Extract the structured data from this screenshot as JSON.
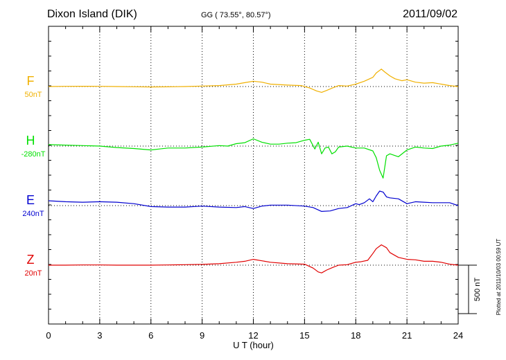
{
  "header": {
    "station": "Dixon Island (DIK)",
    "coords": "GG ( 73.55°,  80.57°)",
    "date": "2011/09/02"
  },
  "plotted_note": "Plotted at 2011/10/03 00:59 UT",
  "scale_label": "500 nT",
  "chart_data": {
    "type": "line",
    "title": "Dixon Island (DIK)",
    "xlabel": "U T (hour)",
    "ylabel": "",
    "xlim": [
      0,
      24
    ],
    "xticks": [
      0,
      3,
      6,
      9,
      12,
      15,
      18,
      21,
      24
    ],
    "grid": true,
    "scale_bar_nT": 500,
    "series": [
      {
        "name": "F",
        "baseline": "50nT",
        "color": "#f0b000",
        "x": [
          0,
          1,
          2,
          3,
          4,
          5,
          6,
          7,
          8,
          9,
          10,
          11,
          11.5,
          12,
          12.5,
          13,
          14,
          14.8,
          15.3,
          15.7,
          16,
          16.3,
          16.7,
          17,
          17.5,
          18,
          18.5,
          19,
          19.2,
          19.5,
          19.7,
          20,
          20.3,
          20.7,
          21,
          21.5,
          22,
          22.5,
          23,
          23.5,
          24
        ],
        "y": [
          0,
          2,
          3,
          2,
          0,
          -2,
          -4,
          -3,
          0,
          5,
          10,
          25,
          40,
          55,
          45,
          25,
          15,
          10,
          -15,
          -45,
          -60,
          -40,
          -10,
          10,
          5,
          25,
          55,
          95,
          140,
          180,
          150,
          110,
          80,
          60,
          70,
          45,
          35,
          40,
          25,
          10,
          0
        ]
      },
      {
        "name": "H",
        "baseline": "-280nT",
        "color": "#00e000",
        "x": [
          0,
          1,
          2,
          3,
          4,
          5,
          6,
          6.5,
          7,
          8,
          9,
          10,
          10.5,
          11,
          11.5,
          12,
          12.5,
          13,
          13.5,
          14,
          14.5,
          15,
          15.3,
          15.6,
          15.8,
          16,
          16.2,
          16.4,
          16.6,
          16.8,
          17,
          17.5,
          18,
          18.5,
          19,
          19.2,
          19.4,
          19.6,
          19.8,
          20,
          20.5,
          21,
          21.5,
          22,
          22.5,
          23,
          23.5,
          24
        ],
        "y": [
          15,
          10,
          5,
          0,
          -15,
          -25,
          -40,
          -30,
          -20,
          -20,
          -10,
          5,
          0,
          25,
          35,
          75,
          40,
          20,
          20,
          30,
          35,
          60,
          70,
          -30,
          40,
          -80,
          -20,
          -10,
          -80,
          -60,
          -10,
          0,
          -20,
          -20,
          -50,
          -120,
          -250,
          -330,
          -100,
          -80,
          -110,
          -40,
          -10,
          -20,
          -25,
          0,
          10,
          30
        ]
      },
      {
        "name": "E",
        "baseline": "240nT",
        "color": "#0000d0",
        "x": [
          0,
          1,
          2,
          3,
          4,
          5,
          6,
          7,
          8,
          9,
          10,
          11,
          11.5,
          12,
          12.5,
          13,
          14,
          15,
          15.5,
          16,
          16.5,
          17,
          17.5,
          18,
          18.2,
          18.5,
          18.8,
          19,
          19.2,
          19.4,
          19.6,
          19.8,
          20,
          20.5,
          21,
          21.5,
          22,
          22.5,
          23,
          23.5,
          24
        ],
        "y": [
          50,
          40,
          35,
          40,
          35,
          20,
          -10,
          -15,
          -15,
          -5,
          -15,
          -20,
          -10,
          -30,
          -5,
          5,
          5,
          -5,
          -20,
          -60,
          -55,
          -30,
          -20,
          20,
          10,
          30,
          70,
          40,
          100,
          150,
          140,
          90,
          80,
          70,
          20,
          40,
          35,
          30,
          30,
          30,
          0
        ]
      },
      {
        "name": "Z",
        "baseline": "20nT",
        "color": "#e00000",
        "x": [
          0,
          1,
          2,
          3,
          4,
          5,
          6,
          7,
          8,
          9,
          10,
          11,
          11.5,
          12,
          12.5,
          13,
          14,
          15,
          15.5,
          15.8,
          16,
          16.3,
          16.7,
          17,
          17.5,
          18,
          18.3,
          18.7,
          19,
          19.2,
          19.5,
          19.8,
          20,
          20.5,
          21,
          21.5,
          22,
          22.5,
          23,
          23.5,
          24
        ],
        "y": [
          0,
          0,
          2,
          2,
          0,
          0,
          0,
          2,
          5,
          8,
          15,
          30,
          40,
          60,
          45,
          30,
          15,
          10,
          -30,
          -70,
          -80,
          -50,
          -20,
          0,
          5,
          30,
          35,
          50,
          120,
          170,
          210,
          180,
          130,
          80,
          60,
          55,
          40,
          40,
          30,
          10,
          0
        ]
      }
    ]
  }
}
